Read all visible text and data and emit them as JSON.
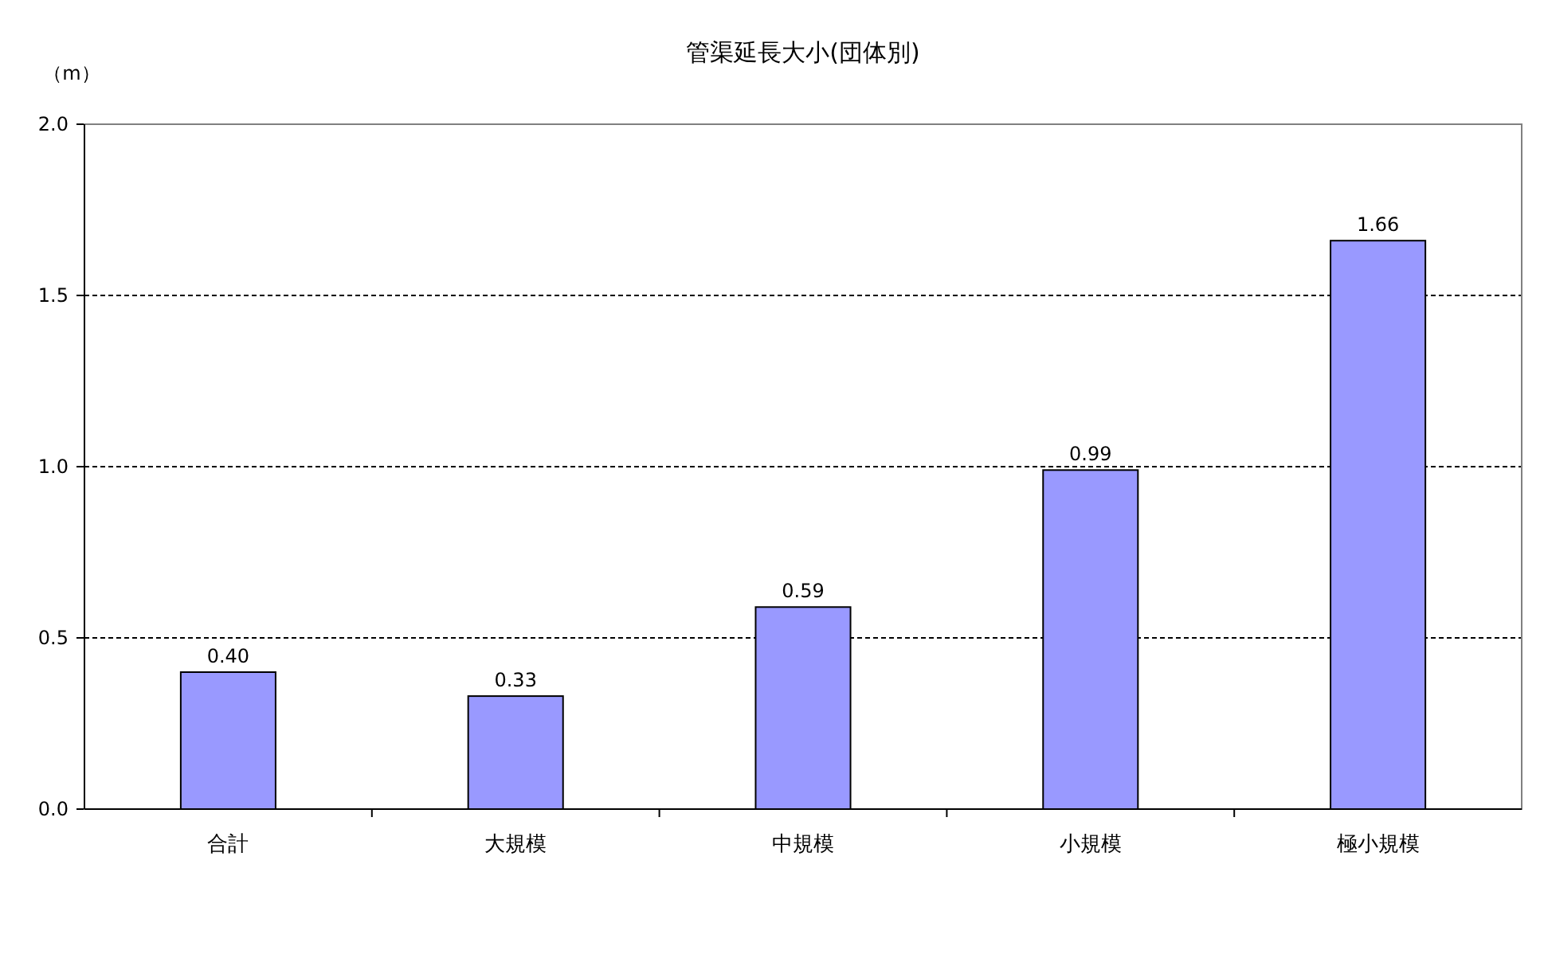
{
  "chart_data": {
    "type": "bar",
    "title": "管渠延長大小(団体別)",
    "ylabel": "（m）",
    "categories": [
      "合計",
      "大規模",
      "中規模",
      "小規模",
      "極小規模"
    ],
    "values": [
      0.4,
      0.33,
      0.59,
      0.99,
      1.66
    ],
    "color": "#9999ff",
    "ylim": [
      0,
      2.0
    ],
    "yticks": [
      {
        "value": 0,
        "label": "0.0"
      },
      {
        "value": 0.5,
        "label": "0.5"
      },
      {
        "value": 1.0,
        "label": "1.0"
      },
      {
        "value": 1.5,
        "label": "1.5"
      },
      {
        "value": 2.0,
        "label": "2.0"
      }
    ],
    "grid": "y",
    "value_labels": [
      "0.40",
      "0.33",
      "0.59",
      "0.99",
      "1.66"
    ]
  }
}
